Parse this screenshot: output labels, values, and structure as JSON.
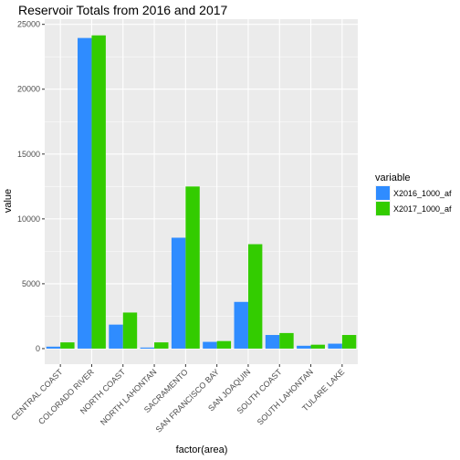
{
  "chart_data": {
    "type": "bar",
    "title": "Reservoir Totals from 2016 and 2017",
    "xlabel": "factor(area)",
    "ylabel": "value",
    "ylim": [
      -1200,
      25400
    ],
    "yticks": [
      0,
      5000,
      10000,
      15000,
      20000,
      25000
    ],
    "ytick_labels": [
      "0",
      "5000",
      "10000",
      "15000",
      "20000",
      "25000"
    ],
    "grid": true,
    "legend_position": "right",
    "legend_title": "variable",
    "categories": [
      "CENTRAL COAST",
      "COLORADO RIVER",
      "NORTH COAST",
      "NORTH LAHONTAN",
      "SACRAMENTO",
      "SAN FRANCISCO BAY",
      "SAN JOAQUIN",
      "SOUTH COAST",
      "SOUTH LAHONTAN",
      "TULARE LAKE"
    ],
    "series": [
      {
        "name": "X2016_1000_af",
        "color": "#2f8cff",
        "values": [
          150,
          23950,
          1850,
          80,
          8550,
          520,
          3600,
          1050,
          220,
          380
        ]
      },
      {
        "name": "X2017_1000_af",
        "color": "#33cc00",
        "values": [
          480,
          24150,
          2780,
          480,
          12500,
          580,
          8050,
          1200,
          300,
          1050
        ]
      }
    ]
  }
}
